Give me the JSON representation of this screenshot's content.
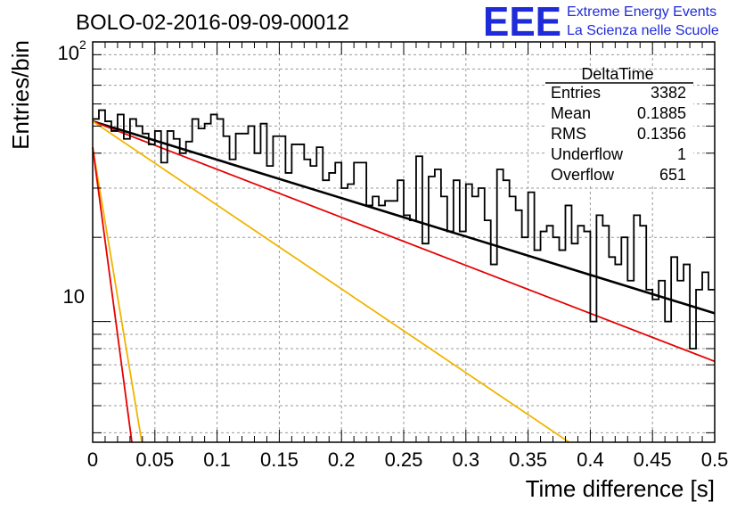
{
  "chart_data": {
    "type": "line",
    "title": "BOLO-02-2016-09-09-00012",
    "xlabel": "Time difference [s]",
    "ylabel": "Entries/bin",
    "xlim": [
      0,
      0.5
    ],
    "ylim": [
      3.7,
      100
    ],
    "y_scale": "log",
    "grid": true,
    "x_ticks": [
      "0",
      "0.05",
      "0.1",
      "0.15",
      "0.2",
      "0.25",
      "0.3",
      "0.35",
      "0.4",
      "0.45",
      "0.5"
    ],
    "y_tick_labels": {
      "exponent_base": "10",
      "exponent": "2",
      "ten": "10"
    },
    "histogram": {
      "bin_width": 0.005,
      "values": [
        53,
        57,
        52,
        48,
        55,
        45,
        53,
        50,
        47,
        43,
        48,
        37,
        48,
        45,
        40,
        44,
        53,
        49,
        51,
        55,
        53,
        46,
        38,
        47,
        47,
        50,
        40,
        51,
        36,
        46,
        46,
        34,
        43,
        43,
        38,
        36,
        42,
        32,
        34,
        37,
        30,
        31,
        37,
        37,
        26,
        28,
        26,
        27,
        27,
        32,
        24,
        23,
        39,
        19,
        33,
        35,
        28,
        21,
        32,
        21,
        31,
        28,
        30,
        23,
        16,
        35,
        32,
        28,
        25,
        20,
        29,
        18,
        21,
        22,
        20,
        18,
        26,
        19,
        22,
        21,
        10,
        24,
        22,
        17,
        16,
        20,
        14,
        24,
        22,
        13,
        12,
        14,
        10,
        17,
        14,
        16,
        8,
        13,
        15,
        13
      ]
    },
    "curves": [
      {
        "color": "#000000",
        "points": [
          [
            0,
            52
          ],
          [
            0.5,
            10.7
          ]
        ]
      },
      {
        "color": "#e60000",
        "points": [
          [
            0,
            52
          ],
          [
            0.5,
            7.2
          ]
        ]
      },
      {
        "color": "#f0b400",
        "points": [
          [
            0,
            52
          ],
          [
            0.383,
            3.7
          ]
        ]
      },
      {
        "color": "#f0b400",
        "points": [
          [
            0,
            42
          ],
          [
            0.0395,
            3.7
          ]
        ]
      },
      {
        "color": "#e60000",
        "points": [
          [
            0,
            42
          ],
          [
            0.0315,
            3.7
          ]
        ]
      }
    ]
  },
  "stats_box": {
    "title": "DeltaTime",
    "rows": [
      {
        "label": "Entries",
        "value": "3382"
      },
      {
        "label": "Mean",
        "value": "0.1885"
      },
      {
        "label": "RMS",
        "value": "0.1356"
      },
      {
        "label": "Underflow",
        "value": "1"
      },
      {
        "label": "Overflow",
        "value": "651"
      }
    ]
  },
  "logo": {
    "mark": "EEE",
    "line1": "Extreme Energy Events",
    "line2": "La Scienza nelle Scuole",
    "color": "#1f2bd8"
  }
}
